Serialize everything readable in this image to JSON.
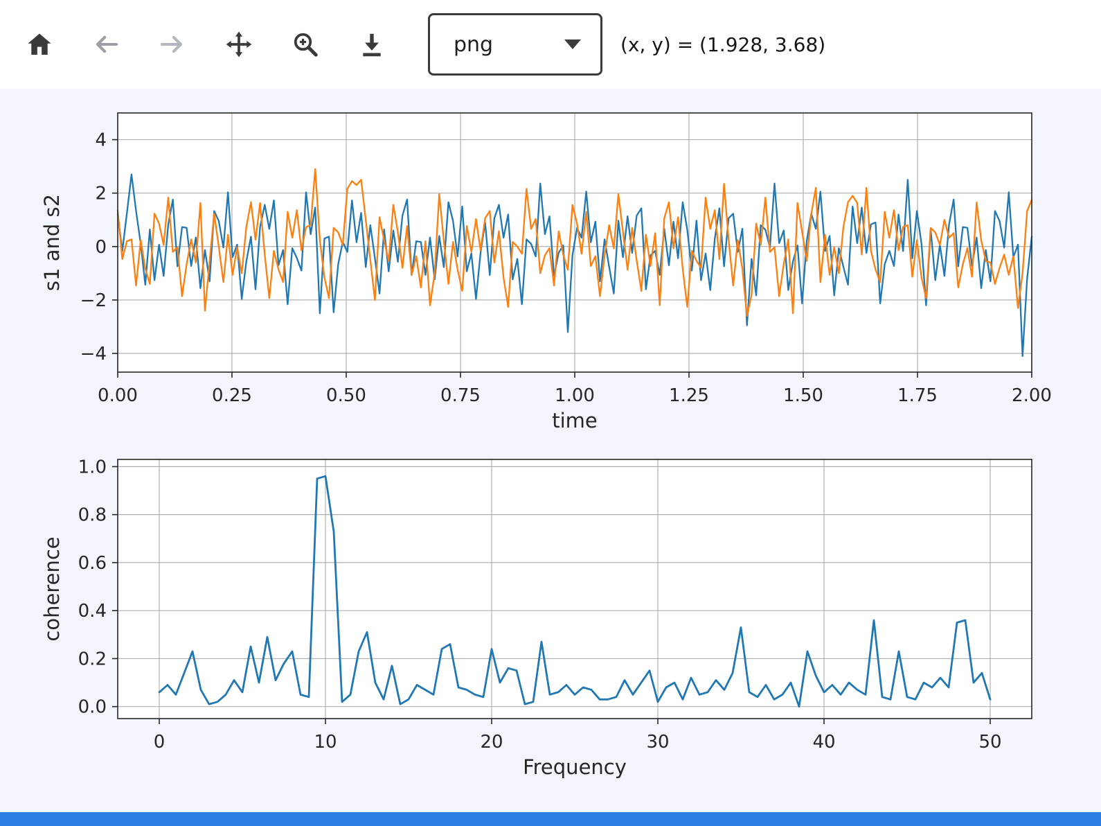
{
  "toolbar": {
    "buttons": [
      {
        "id": "home",
        "icon": "home-icon"
      },
      {
        "id": "back",
        "icon": "back-icon"
      },
      {
        "id": "forward",
        "icon": "forward-icon"
      },
      {
        "id": "pan",
        "icon": "pan-icon"
      },
      {
        "id": "zoom",
        "icon": "zoom-icon"
      },
      {
        "id": "download",
        "icon": "download-icon"
      }
    ],
    "format_select": {
      "value": "png"
    },
    "message": "(x, y) = (1.928, 3.68)"
  },
  "colors": {
    "series_blue": "#1f77b4",
    "series_orange": "#ff7f0e",
    "grid": "#b0b0b0",
    "spine": "#262626",
    "axes_bg": "#ffffff",
    "panel_bg": "#f2f6fc",
    "footer_bar": "#2b7fe3"
  },
  "chart_data": [
    {
      "type": "line",
      "title": "",
      "xlabel": "time",
      "ylabel": "s1 and s2",
      "xlim": [
        0,
        2
      ],
      "ylim": [
        -4.7,
        5.0
      ],
      "xticks": [
        0,
        0.25,
        0.5,
        0.75,
        1.0,
        1.25,
        1.5,
        1.75,
        2.0
      ],
      "xtick_labels": [
        "0.00",
        "0.25",
        "0.50",
        "0.75",
        "1.00",
        "1.25",
        "1.50",
        "1.75",
        "2.00"
      ],
      "yticks": [
        -4,
        -2,
        0,
        2,
        4
      ],
      "ytick_labels": [
        "−4",
        "−2",
        "0",
        "2",
        "4"
      ],
      "grid": true,
      "x_start": 0,
      "dx": 0.01005,
      "series": [
        {
          "name": "s1",
          "color": "#1f77b4",
          "width": 2.3,
          "values": [
            1.2,
            -0.17,
            1.26,
            2.7,
            1.33,
            0.1,
            -1.43,
            0.64,
            -1.26,
            0.07,
            -1.1,
            0.83,
            1.76,
            -0.74,
            0.73,
            0.7,
            -0.73,
            0.34,
            -1.56,
            -0.13,
            -1.3,
            1.33,
            0.96,
            -0.04,
            2.03,
            -0.4,
            0.07,
            -1.96,
            -0.56,
            0.37,
            -1.6,
            0.73,
            1.56,
            0.66,
            1.73,
            -0.7,
            -0.13,
            -2.16,
            -0.06,
            -0.43,
            -0.9,
            2.03,
            0.46,
            1.46,
            -2.5,
            0.3,
            0.37,
            -2.46,
            -0.66,
            0.17,
            -0.2,
            1.73,
            0.16,
            1.26,
            -0.77,
            0.8,
            -0.43,
            -1.76,
            0.64,
            -0.93,
            0.6,
            -0.57,
            1.16,
            1.76,
            -1.07,
            0.2,
            0.17,
            -1.06,
            0.34,
            -1.23,
            0.4,
            -0.77,
            1.66,
            0.96,
            -0.37,
            1.5,
            -0.93,
            -0.26,
            -1.96,
            -0.23,
            0.9,
            -1.07,
            1.06,
            1.56,
            0.33,
            1.2,
            -1.23,
            -0.46,
            -2.16,
            0.27,
            0.1,
            -0.37,
            2.36,
            0.46,
            1.13,
            -1.1,
            -0.23,
            0.04,
            -3.2,
            -0.33,
            0.7,
            0.33,
            2.06,
            0.16,
            0.93,
            -1.3,
            0.27,
            -0.76,
            -1.76,
            0.97,
            -0.4,
            1.13,
            -0.24,
            1.16,
            1.43,
            -1.6,
            -0.33,
            -0.16,
            -1.06,
            0.67,
            -0.7,
            0.93,
            -0.44,
            1.66,
            0.63,
            -0.9,
            0.97,
            -1.26,
            -0.26,
            -1.63,
            0.3,
            1.43,
            -0.74,
            1.06,
            1.23,
            -0.2,
            0.67,
            -2.95,
            -0.46,
            -1.83,
            0.8,
            0.63,
            -0.04,
            2.36,
            0.13,
            0.6,
            -1.63,
            -0.56,
            0.04,
            -2.13,
            0.2,
            1.23,
            0.66,
            2.06,
            -0.17,
            0.4,
            -1.83,
            -0.06,
            -0.76,
            -1.43,
            1.5,
            0.13,
            1.46,
            -0.24,
            0.83,
            0.9,
            -2.13,
            -0.66,
            -0.16,
            -0.73,
            1.2,
            -0.17,
            2.5,
            -0.44,
            1.33,
            0.1,
            -2.2,
            0.64,
            -1.26,
            0.07,
            -1.1,
            0.83,
            1.76,
            -0.74,
            0.73,
            0.7,
            -0.73,
            0.34,
            -1.56,
            -0.13,
            -1.3,
            1.33,
            0.96,
            -0.04,
            2.03,
            -0.4,
            0.07,
            -4.1,
            -1.2,
            0.37
          ]
        },
        {
          "name": "s2",
          "color": "#ff7f0e",
          "width": 2.3,
          "values": [
            1.36,
            -0.47,
            0.2,
            0.27,
            -1.46,
            0.24,
            -0.83,
            -1.4,
            1.23,
            0.86,
            0.06,
            1.83,
            -0.2,
            -0.03,
            -1.86,
            -0.66,
            0.27,
            -0.6,
            1.63,
            -2.4,
            -0.54,
            1.23,
            0.0,
            -1.33,
            0.44,
            -1.06,
            -0.03,
            -1.0,
            0.73,
            1.66,
            0.26,
            1.63,
            -0.3,
            -1.93,
            -0.16,
            -0.86,
            -1.33,
            1.3,
            0.33,
            1.36,
            -0.14,
            0.73,
            0.8,
            2.9,
            0.24,
            -1.16,
            -1.93,
            0.7,
            0.53,
            0.06,
            2.16,
            2.45,
            2.3,
            2.5,
            1.0,
            -0.5,
            -2.0,
            1.1,
            0.23,
            -0.54,
            1.56,
            0.53,
            -0.8,
            0.77,
            -1.06,
            -0.36,
            -1.53,
            0.2,
            -2.2,
            -1.0,
            1.96,
            0.23,
            -1.4,
            0.17,
            -0.86,
            -1.66,
            0.77,
            -0.2,
            1.03,
            -0.14,
            1.06,
            1.33,
            -0.6,
            0.57,
            -1.16,
            -2.26,
            0.17,
            0.0,
            -0.27,
            2.16,
            0.66,
            1.03,
            -1.0,
            -0.33,
            -0.06,
            -1.46,
            0.57,
            -0.3,
            -0.87,
            1.56,
            0.86,
            -0.27,
            1.3,
            -0.73,
            -0.36,
            -1.86,
            -0.33,
            0.8,
            -0.07,
            1.96,
            0.56,
            -0.87,
            0.7,
            -0.53,
            -1.66,
            0.44,
            -0.73,
            0.5,
            -2.2,
            1.06,
            1.66,
            -0.07,
            1.1,
            -0.83,
            -2.26,
            -0.16,
            -0.53,
            -0.8,
            1.83,
            0.66,
            1.36,
            -0.47,
            2.35,
            0.27,
            -1.46,
            0.24,
            -0.83,
            -2.6,
            -1.8,
            0.86,
            0.06,
            1.83,
            -0.2,
            -0.03,
            -1.86,
            -0.66,
            0.27,
            -2.5,
            1.63,
            0.56,
            -0.54,
            1.23,
            2.2,
            -1.33,
            0.44,
            -1.06,
            -0.03,
            -1.0,
            0.73,
            1.66,
            1.9,
            1.63,
            -0.3,
            2.2,
            -0.16,
            -0.86,
            -1.33,
            1.3,
            0.33,
            1.36,
            -0.14,
            0.73,
            0.8,
            -1.13,
            0.24,
            -1.16,
            -1.93,
            0.7,
            0.53,
            0.06,
            1.0,
            0.33,
            0.5,
            -1.53,
            -0.66,
            -0.06,
            -1.13,
            1.65,
            0.23,
            -0.54,
            -0.6,
            -1.4,
            -0.8,
            -0.3,
            -1.06,
            -0.36,
            -2.3,
            -1.0,
            1.33,
            1.75
          ]
        }
      ]
    },
    {
      "type": "line",
      "title": "",
      "xlabel": "Frequency",
      "ylabel": "coherence",
      "xlim": [
        -2.5,
        52.5
      ],
      "ylim": [
        -0.05,
        1.03
      ],
      "xticks": [
        0,
        10,
        20,
        30,
        40,
        50
      ],
      "xtick_labels": [
        "0",
        "10",
        "20",
        "30",
        "40",
        "50"
      ],
      "yticks": [
        0,
        0.2,
        0.4,
        0.6,
        0.8,
        1.0
      ],
      "ytick_labels": [
        "0.0",
        "0.2",
        "0.4",
        "0.6",
        "0.8",
        "1.0"
      ],
      "grid": true,
      "x_start": 0,
      "dx": 0.5,
      "series": [
        {
          "name": "coherence",
          "color": "#1f77b4",
          "width": 2.8,
          "values": [
            0.06,
            0.09,
            0.05,
            0.14,
            0.23,
            0.07,
            0.01,
            0.02,
            0.05,
            0.11,
            0.06,
            0.25,
            0.1,
            0.29,
            0.11,
            0.18,
            0.23,
            0.05,
            0.04,
            0.95,
            0.96,
            0.73,
            0.02,
            0.05,
            0.23,
            0.31,
            0.1,
            0.03,
            0.17,
            0.01,
            0.03,
            0.09,
            0.07,
            0.05,
            0.24,
            0.26,
            0.08,
            0.07,
            0.05,
            0.04,
            0.24,
            0.1,
            0.16,
            0.15,
            0.01,
            0.02,
            0.27,
            0.05,
            0.06,
            0.09,
            0.05,
            0.08,
            0.07,
            0.03,
            0.03,
            0.04,
            0.11,
            0.05,
            0.1,
            0.15,
            0.02,
            0.08,
            0.1,
            0.03,
            0.12,
            0.05,
            0.06,
            0.11,
            0.07,
            0.14,
            0.33,
            0.06,
            0.04,
            0.09,
            0.03,
            0.05,
            0.1,
            0.0,
            0.23,
            0.13,
            0.06,
            0.09,
            0.05,
            0.1,
            0.07,
            0.05,
            0.36,
            0.04,
            0.03,
            0.23,
            0.04,
            0.03,
            0.1,
            0.08,
            0.12,
            0.08,
            0.35,
            0.36,
            0.1,
            0.14,
            0.03
          ]
        }
      ]
    }
  ]
}
